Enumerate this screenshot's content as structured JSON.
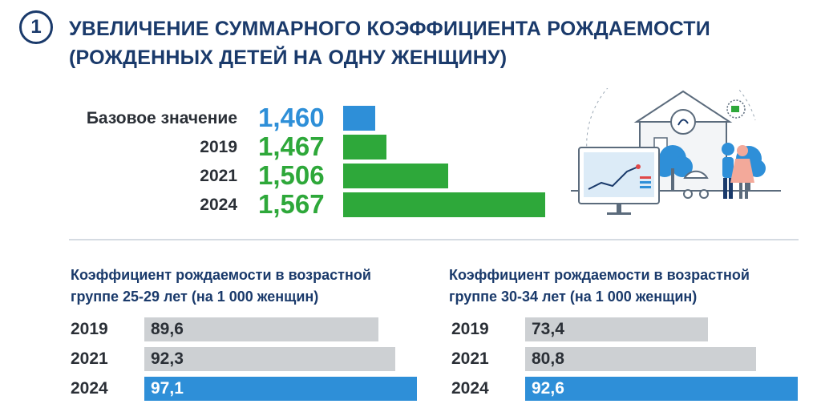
{
  "header": {
    "number": "1",
    "title_line1": "УВЕЛИЧЕНИЕ СУММАРНОГО КОЭФФИЦИЕНТА РОЖДАЕМОСТИ",
    "title_line2": "(РОЖДЕННЫХ ДЕТЕЙ НА ОДНУ ЖЕНЩИНУ)"
  },
  "colors": {
    "accent_blue": "#2e8fd8",
    "accent_green": "#2ea83a",
    "grey_bar": "#cdd0d3",
    "title_navy": "#1a3a6b"
  },
  "chart_data": [
    {
      "type": "bar",
      "orientation": "horizontal",
      "categories": [
        "Базовое значение",
        "2019",
        "2021",
        "2024"
      ],
      "values": [
        1.46,
        1.467,
        1.506,
        1.567
      ],
      "value_labels": [
        "1,460",
        "1,467",
        "1,506",
        "1,567"
      ],
      "bar_colors": [
        "#2e8fd8",
        "#2ea83a",
        "#2ea83a",
        "#2ea83a"
      ]
    },
    {
      "type": "bar",
      "orientation": "horizontal",
      "title": "Коэффициент рождаемости в возрастной группе 25-29 лет (на 1 000 женщин)",
      "title_line1": "Коэффициент рождаемости в возрастной",
      "title_line2": "группе 25-29 лет (на 1 000 женщин)",
      "categories": [
        "2019",
        "2021",
        "2024"
      ],
      "values": [
        89.6,
        92.3,
        97.1
      ],
      "value_labels": [
        "89,6",
        "92,3",
        "97,1"
      ],
      "bar_colors": [
        "#cdd0d3",
        "#cdd0d3",
        "#2e8fd8"
      ]
    },
    {
      "type": "bar",
      "orientation": "horizontal",
      "title": "Коэффициент рождаемости в возрастной группе 30-34 лет (на 1 000 женщин)",
      "title_line1": "Коэффициент рождаемости в возрастной",
      "title_line2": "группе 30-34 лет (на 1 000 женщин)",
      "categories": [
        "2019",
        "2021",
        "2024"
      ],
      "values": [
        73.4,
        80.8,
        92.6
      ],
      "value_labels": [
        "73,4",
        "80,8",
        "92,6"
      ],
      "bar_colors": [
        "#cdd0d3",
        "#cdd0d3",
        "#2e8fd8"
      ]
    }
  ]
}
